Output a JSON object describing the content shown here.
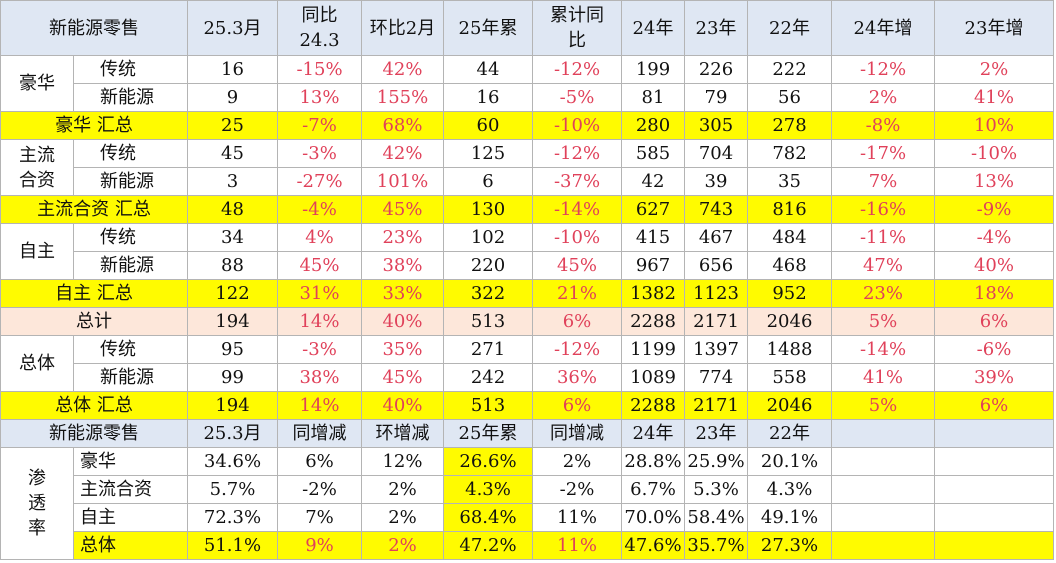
{
  "headers": [
    "新能源零售",
    "25.3月",
    "同比24.3",
    "环比2月",
    "25年累",
    "累计同比",
    "24年",
    "23年",
    "22年",
    "24年增",
    "23年增"
  ],
  "groups": [
    {
      "name": "豪华",
      "rows": [
        {
          "label": "传统",
          "v": [
            "16",
            "-15%",
            "42%",
            "44",
            "-12%",
            "199",
            "226",
            "222",
            "-12%",
            "2%"
          ]
        },
        {
          "label": "新能源",
          "v": [
            "9",
            "13%",
            "155%",
            "16",
            "-5%",
            "81",
            "79",
            "56",
            "2%",
            "41%"
          ]
        }
      ],
      "summary": {
        "label": "豪华  汇总",
        "v": [
          "25",
          "-7%",
          "68%",
          "60",
          "-10%",
          "280",
          "305",
          "278",
          "-8%",
          "10%"
        ]
      }
    },
    {
      "name": "主流合资",
      "rows": [
        {
          "label": "传统",
          "v": [
            "45",
            "-3%",
            "42%",
            "125",
            "-12%",
            "585",
            "704",
            "782",
            "-17%",
            "-10%"
          ]
        },
        {
          "label": "新能源",
          "v": [
            "3",
            "-27%",
            "101%",
            "6",
            "-37%",
            "42",
            "39",
            "35",
            "7%",
            "13%"
          ]
        }
      ],
      "summary": {
        "label": "主流合资  汇总",
        "v": [
          "48",
          "-4%",
          "45%",
          "130",
          "-14%",
          "627",
          "743",
          "816",
          "-16%",
          "-9%"
        ]
      }
    },
    {
      "name": "自主",
      "rows": [
        {
          "label": "传统",
          "v": [
            "34",
            "4%",
            "23%",
            "102",
            "-10%",
            "415",
            "467",
            "484",
            "-11%",
            "-4%"
          ]
        },
        {
          "label": "新能源",
          "v": [
            "88",
            "45%",
            "38%",
            "220",
            "45%",
            "967",
            "656",
            "468",
            "47%",
            "40%"
          ]
        }
      ],
      "summary": {
        "label": "自主  汇总",
        "v": [
          "122",
          "31%",
          "33%",
          "322",
          "21%",
          "1382",
          "1123",
          "952",
          "23%",
          "18%"
        ]
      }
    }
  ],
  "total": {
    "label": "总计",
    "v": [
      "194",
      "14%",
      "40%",
      "513",
      "6%",
      "2288",
      "2171",
      "2046",
      "5%",
      "6%"
    ]
  },
  "overall": {
    "name": "总体",
    "rows": [
      {
        "label": "传统",
        "v": [
          "95",
          "-3%",
          "35%",
          "271",
          "-12%",
          "1199",
          "1397",
          "1488",
          "-14%",
          "-6%"
        ]
      },
      {
        "label": "新能源",
        "v": [
          "99",
          "38%",
          "45%",
          "242",
          "36%",
          "1089",
          "774",
          "558",
          "41%",
          "39%"
        ]
      }
    ],
    "summary": {
      "label": "总体  汇总",
      "v": [
        "194",
        "14%",
        "40%",
        "513",
        "6%",
        "2288",
        "2171",
        "2046",
        "5%",
        "6%"
      ]
    }
  },
  "headers2": [
    "新能源零售",
    "25.3月",
    "同增减",
    "环增减",
    "25年累",
    "同增减",
    "24年",
    "23年",
    "22年"
  ],
  "penetration": {
    "name": "渗透率",
    "rows": [
      {
        "label": "豪华",
        "v": [
          "34.6%",
          "6%",
          "12%",
          "26.6%",
          "2%",
          "28.8%",
          "25.9%",
          "20.1%"
        ]
      },
      {
        "label": "主流合资",
        "v": [
          "5.7%",
          "-2%",
          "2%",
          "4.3%",
          "-2%",
          "6.7%",
          "5.3%",
          "4.3%"
        ]
      },
      {
        "label": "自主",
        "v": [
          "72.3%",
          "7%",
          "2%",
          "68.4%",
          "11%",
          "70.0%",
          "58.4%",
          "49.1%"
        ]
      },
      {
        "label": "总体",
        "v": [
          "51.1%",
          "9%",
          "2%",
          "47.2%",
          "11%",
          "47.6%",
          "35.7%",
          "27.3%"
        ]
      }
    ]
  }
}
